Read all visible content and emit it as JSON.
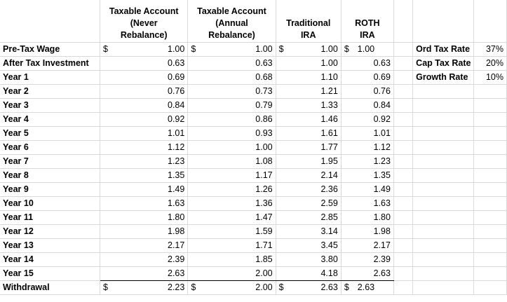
{
  "headers": {
    "taxable_never": [
      "Taxable Account",
      "(Never",
      "Rebalance)"
    ],
    "taxable_annual": [
      "Taxable Account",
      "(Annual",
      "Rebalance)"
    ],
    "traditional": [
      "Traditional",
      "IRA"
    ],
    "roth": [
      "ROTH",
      "IRA"
    ]
  },
  "currency_symbol": "$",
  "rows": [
    {
      "label": "Pre-Tax Wage",
      "never": "1.00",
      "annual": "1.00",
      "trad": "1.00",
      "roth": "1.00"
    },
    {
      "label": "After Tax Investment",
      "never": "0.63",
      "annual": "0.63",
      "trad": "1.00",
      "roth": "0.63"
    },
    {
      "label": "Year 1",
      "never": "0.69",
      "annual": "0.68",
      "trad": "1.10",
      "roth": "0.69"
    },
    {
      "label": "Year 2",
      "never": "0.76",
      "annual": "0.73",
      "trad": "1.21",
      "roth": "0.76"
    },
    {
      "label": "Year 3",
      "never": "0.84",
      "annual": "0.79",
      "trad": "1.33",
      "roth": "0.84"
    },
    {
      "label": "Year 4",
      "never": "0.92",
      "annual": "0.86",
      "trad": "1.46",
      "roth": "0.92"
    },
    {
      "label": "Year 5",
      "never": "1.01",
      "annual": "0.93",
      "trad": "1.61",
      "roth": "1.01"
    },
    {
      "label": "Year 6",
      "never": "1.12",
      "annual": "1.00",
      "trad": "1.77",
      "roth": "1.12"
    },
    {
      "label": "Year 7",
      "never": "1.23",
      "annual": "1.08",
      "trad": "1.95",
      "roth": "1.23"
    },
    {
      "label": "Year 8",
      "never": "1.35",
      "annual": "1.17",
      "trad": "2.14",
      "roth": "1.35"
    },
    {
      "label": "Year 9",
      "never": "1.49",
      "annual": "1.26",
      "trad": "2.36",
      "roth": "1.49"
    },
    {
      "label": "Year 10",
      "never": "1.63",
      "annual": "1.36",
      "trad": "2.59",
      "roth": "1.63"
    },
    {
      "label": "Year 11",
      "never": "1.80",
      "annual": "1.47",
      "trad": "2.85",
      "roth": "1.80"
    },
    {
      "label": "Year 12",
      "never": "1.98",
      "annual": "1.59",
      "trad": "3.14",
      "roth": "1.98"
    },
    {
      "label": "Year 13",
      "never": "2.17",
      "annual": "1.71",
      "trad": "3.45",
      "roth": "2.17"
    },
    {
      "label": "Year 14",
      "never": "2.39",
      "annual": "1.85",
      "trad": "3.80",
      "roth": "2.39"
    },
    {
      "label": "Year 15",
      "never": "2.63",
      "annual": "2.00",
      "trad": "4.18",
      "roth": "2.63"
    },
    {
      "label": "Withdrawal",
      "never": "2.23",
      "annual": "2.00",
      "trad": "2.63",
      "roth": "2.63"
    }
  ],
  "rates": [
    {
      "label": "Ord Tax Rate",
      "value": "37%"
    },
    {
      "label": "Cap Tax Rate",
      "value": "20%"
    },
    {
      "label": "Growth Rate",
      "value": "10%"
    }
  ]
}
